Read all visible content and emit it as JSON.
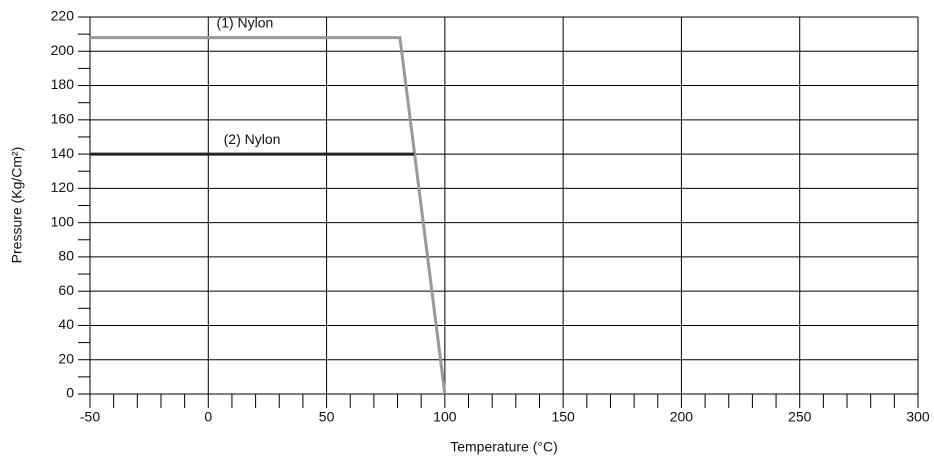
{
  "chart_data": {
    "type": "line",
    "x_label": "Temperature (°C)",
    "y_label": "Pressure (Kg/Cm²)",
    "xlim": [
      -50,
      300
    ],
    "xticks": [
      -50,
      0,
      50,
      100,
      150,
      200,
      250,
      300
    ],
    "xminorticks": [
      -40,
      -30,
      -20,
      -10,
      10,
      20,
      30,
      40,
      60,
      70,
      80,
      90,
      110,
      120,
      130,
      140,
      160,
      170,
      180,
      190,
      210,
      220,
      230,
      240,
      260,
      270,
      280,
      290
    ],
    "ylim": [
      0,
      220
    ],
    "yticks": [
      0,
      20,
      40,
      60,
      80,
      100,
      120,
      140,
      160,
      180,
      200,
      220
    ],
    "yminorticks": [
      10,
      30,
      50,
      70,
      90,
      110,
      130,
      150,
      170,
      190,
      210
    ],
    "grid": true,
    "series": [
      {
        "name": "(1) Nylon",
        "color": "#999999",
        "x": [
          -50,
          81,
          100
        ],
        "values": [
          208,
          208,
          0
        ]
      },
      {
        "name": "(2) Nylon",
        "color": "#222222",
        "x": [
          -50,
          87
        ],
        "values": [
          140,
          140
        ]
      }
    ]
  }
}
